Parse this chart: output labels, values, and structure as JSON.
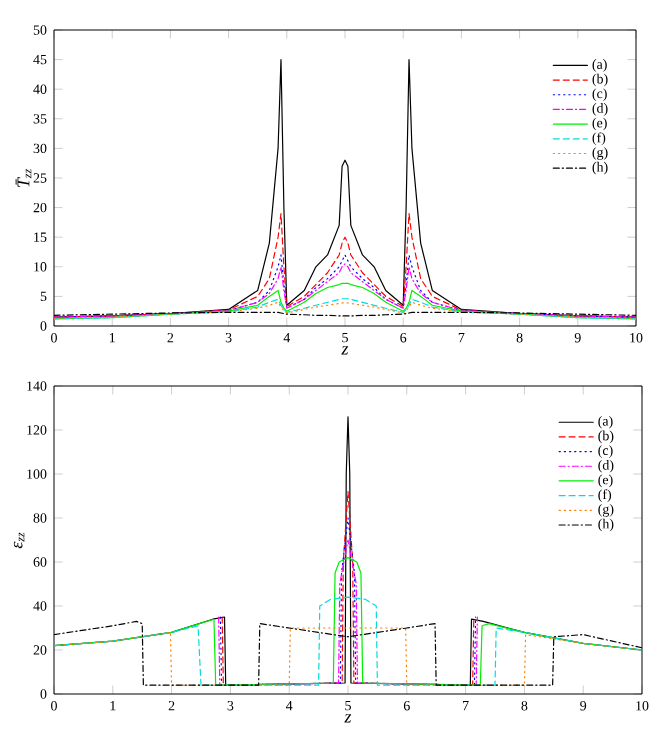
{
  "chart_data": [
    {
      "type": "line",
      "xlabel": "z",
      "ylabel": "T̄$_{zz}$",
      "xlim": [
        0,
        10
      ],
      "ylim": [
        0,
        50
      ],
      "xticks": [
        0,
        1,
        2,
        3,
        4,
        5,
        6,
        7,
        8,
        9,
        10
      ],
      "yticks": [
        0,
        5,
        10,
        15,
        20,
        25,
        30,
        35,
        40,
        45,
        50
      ],
      "legend": "top right",
      "x": [
        0,
        1,
        2,
        3,
        3.5,
        3.7,
        3.85,
        3.9,
        3.95,
        4,
        4.3,
        4.5,
        4.7,
        4.9,
        4.95,
        5,
        5.05,
        5.1,
        5.3,
        5.5,
        5.7,
        6,
        6.05,
        6.1,
        6.15,
        6.3,
        6.5,
        7,
        8,
        9,
        10
      ],
      "series": [
        {
          "name": "(a)",
          "color": "#000000",
          "line_style": "solid",
          "values": [
            1.5,
            1.7,
            2.1,
            2.8,
            6,
            14,
            30,
            45,
            20,
            3.5,
            6,
            10,
            12,
            17,
            27,
            28,
            27,
            17,
            12,
            10,
            6,
            3.5,
            20,
            45,
            30,
            14,
            6,
            2.8,
            2.1,
            1.7,
            1.5
          ]
        },
        {
          "name": "(b)",
          "color": "#ff0000",
          "line_style": "dashed",
          "values": [
            1.5,
            1.7,
            2.1,
            2.7,
            5,
            8,
            15,
            19,
            10,
            3.3,
            5,
            7,
            9,
            12,
            14,
            15,
            14,
            12,
            9,
            7,
            5,
            3.3,
            10,
            19,
            15,
            8,
            5,
            2.7,
            2.1,
            1.7,
            1.5
          ]
        },
        {
          "name": "(c)",
          "color": "#0000ff",
          "line_style": "dotted",
          "values": [
            1.5,
            1.7,
            2.1,
            2.6,
            4,
            6,
            10,
            12,
            7,
            3,
            4.5,
            6.5,
            8,
            10,
            11,
            12,
            11,
            10,
            8,
            6.5,
            4.5,
            3,
            7,
            12,
            10,
            6,
            4,
            2.6,
            2.1,
            1.7,
            1.5
          ]
        },
        {
          "name": "(d)",
          "color": "#ff00ff",
          "line_style": "dashdot",
          "values": [
            1.5,
            1.7,
            2.1,
            2.6,
            4,
            5.5,
            8,
            10,
            6,
            3,
            4.5,
            6,
            7.5,
            9,
            10,
            10.5,
            10,
            9,
            7.5,
            6,
            4.5,
            3,
            6,
            10,
            8,
            5.5,
            4,
            2.6,
            2.1,
            1.7,
            1.5
          ]
        },
        {
          "name": "(e)",
          "color": "#00ee00",
          "line_style": "solid",
          "values": [
            1.2,
            1.4,
            2,
            2.5,
            3.5,
            5,
            6,
            4,
            3,
            2.5,
            4,
            5.5,
            6.5,
            7,
            7.2,
            7.2,
            7.2,
            7,
            6.5,
            5.5,
            4,
            2.5,
            3,
            4,
            6,
            5,
            3.5,
            2.5,
            2,
            1.4,
            1.2
          ]
        },
        {
          "name": "(f)",
          "color": "#00dddd",
          "line_style": "dashed",
          "values": [
            1.2,
            1.4,
            2,
            2.4,
            3.2,
            4,
            4.5,
            3.5,
            2.8,
            2.3,
            3,
            3.5,
            4,
            4.5,
            4.6,
            4.6,
            4.6,
            4.5,
            4,
            3.5,
            3,
            2.3,
            2.8,
            3.5,
            4.5,
            4,
            3.2,
            2.4,
            2,
            1.4,
            1.2
          ]
        },
        {
          "name": "(g)",
          "color": "#ff8000",
          "line_style": "dotted",
          "values": [
            1.3,
            1.5,
            2,
            2.4,
            3,
            3.5,
            4,
            3.2,
            2.6,
            2.2,
            2.8,
            3.2,
            3.5,
            3.8,
            3.9,
            3.9,
            3.9,
            3.8,
            3.5,
            3.2,
            2.8,
            2.2,
            2.6,
            3.2,
            4,
            3.5,
            3,
            2.4,
            2,
            1.5,
            1.3
          ]
        },
        {
          "name": "(h)",
          "color": "#000000",
          "line_style": "dashdot",
          "values": [
            1.8,
            2,
            2.2,
            2.3,
            2.3,
            2.3,
            2.3,
            2.2,
            2.1,
            2,
            1.9,
            1.8,
            1.8,
            1.7,
            1.7,
            1.7,
            1.7,
            1.7,
            1.8,
            1.8,
            1.9,
            2,
            2.1,
            2.2,
            2.3,
            2.3,
            2.3,
            2.3,
            2.2,
            2,
            1.8
          ]
        }
      ]
    },
    {
      "type": "line",
      "xlabel": "z",
      "ylabel": "ε$_{zz}$",
      "xlim": [
        0,
        10
      ],
      "ylim": [
        0,
        140
      ],
      "xticks": [
        0,
        1,
        2,
        3,
        4,
        5,
        6,
        7,
        8,
        9,
        10
      ],
      "yticks": [
        0,
        20,
        40,
        60,
        80,
        100,
        120,
        140
      ],
      "legend": "top right",
      "series": [
        {
          "name": "(a)",
          "color": "#000000",
          "line_style": "solid",
          "x": [
            0,
            1,
            2,
            2.7,
            2.9,
            2.92,
            4.95,
            4.97,
            5,
            5.03,
            5.05,
            7.08,
            7.1,
            7.3,
            8,
            9,
            10
          ],
          "values": [
            22,
            24,
            28,
            34,
            35,
            4,
            5,
            100,
            126,
            100,
            5,
            4,
            34,
            33,
            28,
            23,
            20
          ]
        },
        {
          "name": "(b)",
          "color": "#ff0000",
          "line_style": "dashed",
          "x": [
            2.86,
            2.88,
            4.9,
            4.92,
            5,
            5.08,
            5.1,
            7.12,
            7.14
          ],
          "values": [
            35,
            4,
            5,
            60,
            92,
            60,
            5,
            4,
            35
          ]
        },
        {
          "name": "(c)",
          "color": "#0000ff",
          "line_style": "dotted",
          "x": [
            2.83,
            2.85,
            4.87,
            4.89,
            5,
            5.11,
            5.13,
            7.15,
            7.17
          ],
          "values": [
            35,
            4,
            5,
            55,
            80,
            55,
            5,
            4,
            35
          ]
        },
        {
          "name": "(d)",
          "color": "#ff00ff",
          "line_style": "dashdot",
          "x": [
            2.8,
            2.82,
            4.84,
            4.86,
            5,
            5.14,
            5.16,
            7.18,
            7.2
          ],
          "values": [
            35,
            4,
            5,
            50,
            70,
            50,
            5,
            4,
            35
          ]
        },
        {
          "name": "(e)",
          "color": "#00ee00",
          "line_style": "solid",
          "x": [
            0,
            1,
            2,
            2.6,
            2.72,
            2.75,
            4.75,
            4.78,
            4.85,
            5,
            5.15,
            5.22,
            5.25,
            7.25,
            7.28,
            7.4,
            8,
            9,
            10
          ],
          "values": [
            22,
            24,
            28,
            33,
            34,
            4,
            5,
            55,
            60,
            62,
            60,
            55,
            5,
            4,
            31,
            32,
            28,
            23,
            20
          ]
        },
        {
          "name": "(f)",
          "color": "#00dddd",
          "line_style": "dashed",
          "x": [
            0,
            1,
            2,
            2.45,
            2.5,
            4.5,
            4.52,
            4.7,
            5,
            5.3,
            5.48,
            5.5,
            7.5,
            7.52,
            8,
            9,
            10
          ],
          "values": [
            22,
            24,
            28,
            31,
            4,
            4,
            40,
            43,
            44,
            43,
            40,
            4,
            4,
            30,
            28,
            23,
            20
          ]
        },
        {
          "name": "(g)",
          "color": "#ff8000",
          "line_style": "dotted",
          "x": [
            0,
            1,
            1.98,
            2,
            4,
            4.02,
            5,
            5.98,
            6,
            8,
            8.02,
            9,
            10
          ],
          "values": [
            22,
            24,
            28,
            4,
            4,
            30,
            30,
            30,
            4,
            4,
            27,
            23,
            20
          ]
        },
        {
          "name": "(h)",
          "color": "#000000",
          "line_style": "dashdot",
          "x": [
            0,
            1,
            1.4,
            1.5,
            1.52,
            3.48,
            3.5,
            4,
            5,
            6,
            6.48,
            6.5,
            8.48,
            8.5,
            9,
            10
          ],
          "values": [
            27,
            31,
            33,
            32,
            4,
            4,
            32,
            30,
            26,
            30,
            32,
            4,
            4,
            26,
            27,
            21
          ]
        }
      ]
    }
  ]
}
